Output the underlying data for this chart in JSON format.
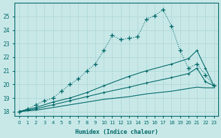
{
  "xlabel": "Humidex (Indice chaleur)",
  "bg_color": "#c8e8e8",
  "grid_color": "#b0d8d8",
  "line_color": "#006868",
  "xlim": [
    -0.5,
    23.5
  ],
  "ylim": [
    17.7,
    26.0
  ],
  "yticks": [
    18,
    19,
    20,
    21,
    22,
    23,
    24,
    25
  ],
  "xticks": [
    0,
    1,
    2,
    3,
    4,
    5,
    6,
    7,
    8,
    9,
    10,
    11,
    12,
    13,
    14,
    15,
    16,
    17,
    18,
    19,
    20,
    21,
    22,
    23
  ],
  "line1_x": [
    0,
    1,
    2,
    3,
    4,
    5,
    6,
    7,
    8,
    9,
    10,
    11,
    12,
    13,
    14,
    15,
    16,
    17,
    18,
    19,
    20,
    21,
    22,
    23
  ],
  "line1_y": [
    18.0,
    18.2,
    18.5,
    18.8,
    19.0,
    19.5,
    20.0,
    20.4,
    21.0,
    21.5,
    22.5,
    23.6,
    23.3,
    23.4,
    23.5,
    24.8,
    25.05,
    25.5,
    24.3,
    22.5,
    21.2,
    21.5,
    20.7,
    19.9
  ],
  "line2_x": [
    0,
    2,
    4,
    6,
    8,
    10,
    13,
    15,
    18,
    20,
    21,
    22,
    23
  ],
  "line2_y": [
    18.0,
    18.3,
    18.7,
    19.0,
    19.4,
    19.9,
    20.6,
    21.0,
    21.5,
    21.9,
    22.5,
    21.2,
    19.9
  ],
  "line3_x": [
    0,
    2,
    4,
    6,
    8,
    10,
    13,
    15,
    18,
    20,
    21,
    22,
    23
  ],
  "line3_y": [
    18.0,
    18.2,
    18.5,
    18.8,
    19.1,
    19.4,
    19.8,
    20.1,
    20.5,
    20.8,
    21.2,
    20.2,
    19.9
  ],
  "line4_x": [
    0,
    2,
    4,
    6,
    8,
    10,
    13,
    15,
    18,
    20,
    21,
    22,
    23
  ],
  "line4_y": [
    18.0,
    18.1,
    18.3,
    18.5,
    18.7,
    18.9,
    19.1,
    19.3,
    19.5,
    19.7,
    19.8,
    19.75,
    19.75
  ]
}
